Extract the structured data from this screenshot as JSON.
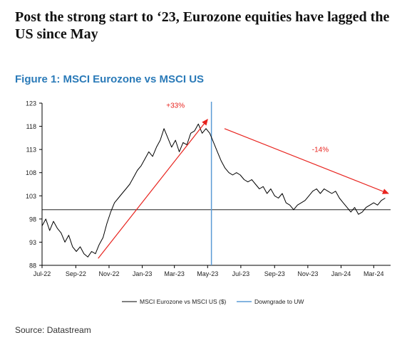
{
  "headline": "Post the strong start to ‘23, Eurozone equities have lagged the US since May",
  "figure_title": "Figure 1: MSCI Eurozone vs MSCI US",
  "source": "Source: Datastream",
  "chart_data": {
    "type": "line",
    "title": "",
    "xlabel": "",
    "ylabel": "",
    "x_ticks": [
      "Jul-22",
      "Sep-22",
      "Nov-22",
      "Jan-23",
      "Mar-23",
      "May-23",
      "Jul-23",
      "Sep-23",
      "Nov-23",
      "Jan-24",
      "Mar-24"
    ],
    "x_range": [
      "2022-07-01",
      "2024-04-01"
    ],
    "y_ticks": [
      88,
      93,
      98,
      103,
      108,
      113,
      118,
      123
    ],
    "ylim": [
      88,
      123
    ],
    "reference_line": 100,
    "grid": false,
    "legend_position": "bottom",
    "colors": {
      "series": "#000000",
      "downgrade": "#5b9bd5",
      "annotation": "#e8231e",
      "reference": "#000000"
    },
    "series": [
      {
        "name": "MSCI Eurozone vs MSCI US ($)",
        "points": [
          [
            "2022-07-01",
            96.5
          ],
          [
            "2022-07-08",
            98.0
          ],
          [
            "2022-07-15",
            95.5
          ],
          [
            "2022-07-22",
            97.5
          ],
          [
            "2022-07-29",
            96.0
          ],
          [
            "2022-08-05",
            95.0
          ],
          [
            "2022-08-12",
            93.0
          ],
          [
            "2022-08-19",
            94.5
          ],
          [
            "2022-08-26",
            92.0
          ],
          [
            "2022-09-02",
            91.0
          ],
          [
            "2022-09-09",
            92.0
          ],
          [
            "2022-09-16",
            90.5
          ],
          [
            "2022-09-23",
            89.8
          ],
          [
            "2022-09-30",
            91.0
          ],
          [
            "2022-10-07",
            90.5
          ],
          [
            "2022-10-14",
            92.5
          ],
          [
            "2022-10-21",
            94.0
          ],
          [
            "2022-10-28",
            97.0
          ],
          [
            "2022-11-04",
            99.5
          ],
          [
            "2022-11-11",
            101.5
          ],
          [
            "2022-11-18",
            102.5
          ],
          [
            "2022-11-25",
            103.5
          ],
          [
            "2022-12-02",
            104.5
          ],
          [
            "2022-12-09",
            105.5
          ],
          [
            "2022-12-16",
            107.0
          ],
          [
            "2022-12-23",
            108.5
          ],
          [
            "2022-12-30",
            109.5
          ],
          [
            "2023-01-06",
            111.0
          ],
          [
            "2023-01-13",
            112.5
          ],
          [
            "2023-01-20",
            111.5
          ],
          [
            "2023-01-27",
            113.5
          ],
          [
            "2023-02-03",
            115.0
          ],
          [
            "2023-02-10",
            117.5
          ],
          [
            "2023-02-17",
            115.5
          ],
          [
            "2023-02-24",
            113.5
          ],
          [
            "2023-03-03",
            115.0
          ],
          [
            "2023-03-10",
            112.5
          ],
          [
            "2023-03-17",
            114.5
          ],
          [
            "2023-03-24",
            114.0
          ],
          [
            "2023-03-31",
            116.5
          ],
          [
            "2023-04-07",
            117.0
          ],
          [
            "2023-04-14",
            118.5
          ],
          [
            "2023-04-21",
            116.5
          ],
          [
            "2023-04-28",
            117.5
          ],
          [
            "2023-05-05",
            116.5
          ],
          [
            "2023-05-12",
            114.5
          ],
          [
            "2023-05-19",
            112.5
          ],
          [
            "2023-05-26",
            110.5
          ],
          [
            "2023-06-02",
            109.0
          ],
          [
            "2023-06-09",
            108.0
          ],
          [
            "2023-06-16",
            107.5
          ],
          [
            "2023-06-23",
            108.0
          ],
          [
            "2023-06-30",
            107.5
          ],
          [
            "2023-07-07",
            106.5
          ],
          [
            "2023-07-14",
            106.0
          ],
          [
            "2023-07-21",
            106.5
          ],
          [
            "2023-07-28",
            105.5
          ],
          [
            "2023-08-04",
            104.5
          ],
          [
            "2023-08-11",
            105.0
          ],
          [
            "2023-08-18",
            103.5
          ],
          [
            "2023-08-25",
            104.5
          ],
          [
            "2023-09-01",
            103.0
          ],
          [
            "2023-09-08",
            102.5
          ],
          [
            "2023-09-15",
            103.5
          ],
          [
            "2023-09-22",
            101.5
          ],
          [
            "2023-09-29",
            101.0
          ],
          [
            "2023-10-06",
            100.0
          ],
          [
            "2023-10-13",
            101.0
          ],
          [
            "2023-10-20",
            101.5
          ],
          [
            "2023-10-27",
            102.0
          ],
          [
            "2023-11-03",
            103.0
          ],
          [
            "2023-11-10",
            104.0
          ],
          [
            "2023-11-17",
            104.5
          ],
          [
            "2023-11-24",
            103.5
          ],
          [
            "2023-12-01",
            104.5
          ],
          [
            "2023-12-08",
            104.0
          ],
          [
            "2023-12-15",
            103.5
          ],
          [
            "2023-12-22",
            104.0
          ],
          [
            "2023-12-29",
            102.5
          ],
          [
            "2024-01-05",
            101.5
          ],
          [
            "2024-01-12",
            100.5
          ],
          [
            "2024-01-19",
            99.5
          ],
          [
            "2024-01-26",
            100.5
          ],
          [
            "2024-02-02",
            99.0
          ],
          [
            "2024-02-09",
            99.5
          ],
          [
            "2024-02-16",
            100.5
          ],
          [
            "2024-02-23",
            101.0
          ],
          [
            "2024-03-01",
            101.5
          ],
          [
            "2024-03-08",
            101.0
          ],
          [
            "2024-03-15",
            102.0
          ],
          [
            "2024-03-22",
            102.5
          ]
        ]
      }
    ],
    "vertical_marker": {
      "name": "Downgrade to UW",
      "x": "2023-05-08"
    },
    "annotations": [
      {
        "text": "+33%",
        "from": [
          "2022-10-12",
          89.5
        ],
        "to": [
          "2023-05-01",
          119.5
        ],
        "label_at": [
          "2023-03-03",
          122
        ]
      },
      {
        "text": "-14%",
        "from": [
          "2023-06-01",
          117.5
        ],
        "to": [
          "2024-03-28",
          103.5
        ],
        "label_at": [
          "2023-11-24",
          112.5
        ]
      }
    ]
  }
}
